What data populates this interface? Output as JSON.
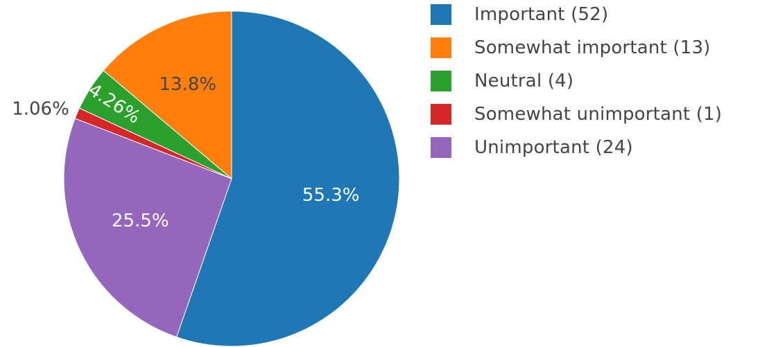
{
  "chart_data": {
    "type": "pie",
    "title": "",
    "slices": [
      {
        "label": "Important (52)",
        "value": 52,
        "percent_label": "55.3%",
        "color": "#1f77b4"
      },
      {
        "label": "Unimportant (24)",
        "value": 24,
        "percent_label": "25.5%",
        "color": "#9467bd"
      },
      {
        "label": "Somewhat unimportant (1)",
        "value": 1,
        "percent_label": "1.06%",
        "color": "#d62728"
      },
      {
        "label": "Neutral (4)",
        "value": 4,
        "percent_label": "4.26%",
        "color": "#2ca02c"
      },
      {
        "label": "Somewhat important (13)",
        "value": 13,
        "percent_label": "13.8%",
        "color": "#ff7f0e"
      }
    ],
    "legend": {
      "position": "right",
      "entries": [
        {
          "label": "Important (52)",
          "color": "#1f77b4"
        },
        {
          "label": "Somewhat important (13)",
          "color": "#ff7f0e"
        },
        {
          "label": "Neutral (4)",
          "color": "#2ca02c"
        },
        {
          "label": "Somewhat unimportant (1)",
          "color": "#d62728"
        },
        {
          "label": "Unimportant (24)",
          "color": "#9467bd"
        }
      ]
    },
    "direction": "clockwise",
    "start_angle": "12 o'clock"
  }
}
